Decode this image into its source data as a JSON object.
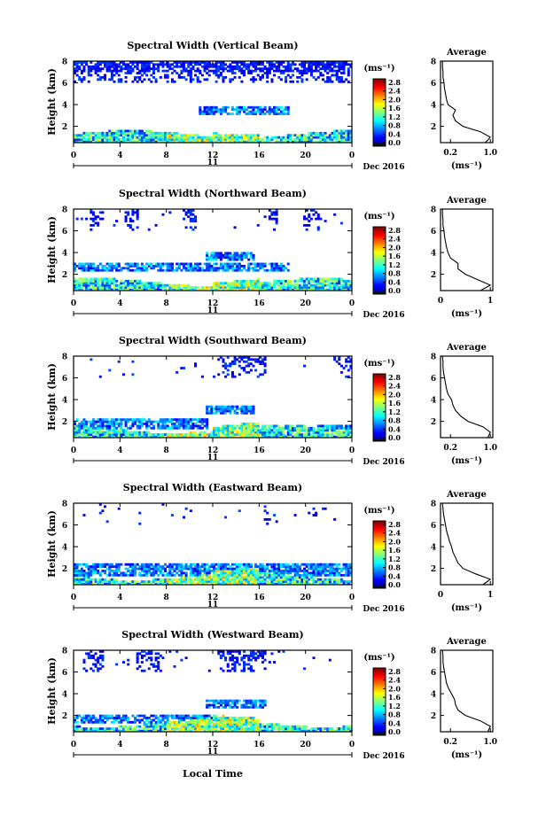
{
  "figure": {
    "xlabel": "Local Time",
    "date_label": "Dec 2016",
    "day_label": "11",
    "ylabel": "Height (km)",
    "unit_label": "(ms⁻¹)",
    "avg_title": "Average",
    "avg_xlabel": "(ms⁻¹)",
    "colormap": "jet",
    "colorbar_ticks": [
      "2.8",
      "2.4",
      "2.0",
      "1.6",
      "1.2",
      "0.8",
      "0.4",
      "0.0"
    ],
    "colors": {
      "low": "#000080",
      "blue": "#3a55d8",
      "cyan": "#2fd8e8",
      "green": "#9be85a",
      "yellow": "#f2e53a",
      "red": "#d7191c"
    }
  },
  "chart_data": [
    {
      "type": "heatmap",
      "title": "Spectral Width (Vertical Beam)",
      "x_ticks": [
        "0",
        "4",
        "8",
        "12",
        "16",
        "20",
        "0"
      ],
      "xlim": [
        0,
        24
      ],
      "ylim": [
        0.5,
        8
      ],
      "y_ticks": [
        "8",
        "6",
        "4",
        "2"
      ],
      "clim": [
        0,
        3
      ],
      "average_profile": {
        "x_ticks": [
          "0.2",
          "1.0"
        ],
        "xlim": [
          0,
          1.05
        ],
        "height": [
          0.5,
          1,
          1.5,
          2,
          2.5,
          3,
          3.5,
          4,
          4.5,
          5,
          5.5,
          6,
          6.5,
          7,
          7.5,
          8
        ],
        "value": [
          0.9,
          1.0,
          0.8,
          0.45,
          0.3,
          0.25,
          0.3,
          0.15,
          0.12,
          0.1,
          0.08,
          0.07,
          0.05,
          0.05,
          0.04,
          0.04
        ]
      }
    },
    {
      "type": "heatmap",
      "title": "Spectral Width (Northward Beam)",
      "x_ticks": [
        "0",
        "4",
        "8",
        "12",
        "16",
        "20",
        "0"
      ],
      "xlim": [
        0,
        24
      ],
      "ylim": [
        0.5,
        8
      ],
      "y_ticks": [
        "8",
        "6",
        "4",
        "2"
      ],
      "clim": [
        0,
        3
      ],
      "average_profile": {
        "x_ticks": [
          "0",
          "1"
        ],
        "xlim": [
          0,
          1.05
        ],
        "height": [
          0.5,
          1,
          1.5,
          2,
          2.5,
          3,
          3.5,
          4,
          4.5,
          5,
          5.5,
          6,
          6.5,
          7,
          7.5,
          8
        ],
        "value": [
          0.8,
          1.0,
          0.75,
          0.5,
          0.35,
          0.35,
          0.2,
          0.15,
          0.12,
          0.1,
          0.08,
          0.07,
          0.05,
          0.05,
          0.04,
          0.04
        ]
      }
    },
    {
      "type": "heatmap",
      "title": "Spectral Width (Southward Beam)",
      "x_ticks": [
        "0",
        "4",
        "8",
        "12",
        "16",
        "20",
        "0"
      ],
      "xlim": [
        0,
        24
      ],
      "ylim": [
        0.5,
        8
      ],
      "y_ticks": [
        "8",
        "6",
        "4",
        "2"
      ],
      "clim": [
        0,
        3
      ],
      "average_profile": {
        "x_ticks": [
          "0.2",
          "1.0"
        ],
        "xlim": [
          0,
          1.05
        ],
        "height": [
          0.5,
          1,
          1.5,
          2,
          2.5,
          3,
          3.5,
          4,
          4.5,
          5,
          5.5,
          6,
          6.5,
          7,
          7.5,
          8
        ],
        "value": [
          0.95,
          1.0,
          0.85,
          0.55,
          0.4,
          0.3,
          0.25,
          0.22,
          0.15,
          0.12,
          0.1,
          0.08,
          0.06,
          0.05,
          0.05,
          0.04
        ]
      }
    },
    {
      "type": "heatmap",
      "title": "Spectral Width (Eastward Beam)",
      "x_ticks": [
        "0",
        "4",
        "8",
        "12",
        "16",
        "20",
        "0"
      ],
      "xlim": [
        0,
        24
      ],
      "ylim": [
        0.5,
        8
      ],
      "y_ticks": [
        "8",
        "6",
        "4",
        "2"
      ],
      "clim": [
        0,
        3
      ],
      "average_profile": {
        "x_ticks": [
          "0",
          "1"
        ],
        "xlim": [
          0,
          1.05
        ],
        "height": [
          0.5,
          1,
          1.5,
          2,
          2.5,
          3,
          3.5,
          4,
          4.5,
          5,
          5.5,
          6,
          6.5,
          7,
          7.5,
          8
        ],
        "value": [
          0.85,
          1.0,
          0.7,
          0.45,
          0.35,
          0.3,
          0.25,
          0.22,
          0.18,
          0.15,
          0.12,
          0.1,
          0.08,
          0.06,
          0.05,
          0.04
        ]
      }
    },
    {
      "type": "heatmap",
      "title": "Spectral Width (Westward Beam)",
      "x_ticks": [
        "0",
        "4",
        "8",
        "12",
        "16",
        "20",
        "0"
      ],
      "xlim": [
        0,
        24
      ],
      "ylim": [
        0.5,
        8
      ],
      "y_ticks": [
        "8",
        "6",
        "4",
        "2"
      ],
      "clim": [
        0,
        3
      ],
      "average_profile": {
        "x_ticks": [
          "0.2",
          "1.0"
        ],
        "xlim": [
          0,
          1.05
        ],
        "height": [
          0.5,
          1,
          1.5,
          2,
          2.5,
          3,
          3.5,
          4,
          4.5,
          5,
          5.5,
          6,
          6.5,
          7,
          7.5,
          8
        ],
        "value": [
          0.95,
          1.0,
          0.8,
          0.5,
          0.35,
          0.3,
          0.28,
          0.22,
          0.16,
          0.12,
          0.1,
          0.08,
          0.06,
          0.05,
          0.05,
          0.04
        ]
      }
    }
  ]
}
